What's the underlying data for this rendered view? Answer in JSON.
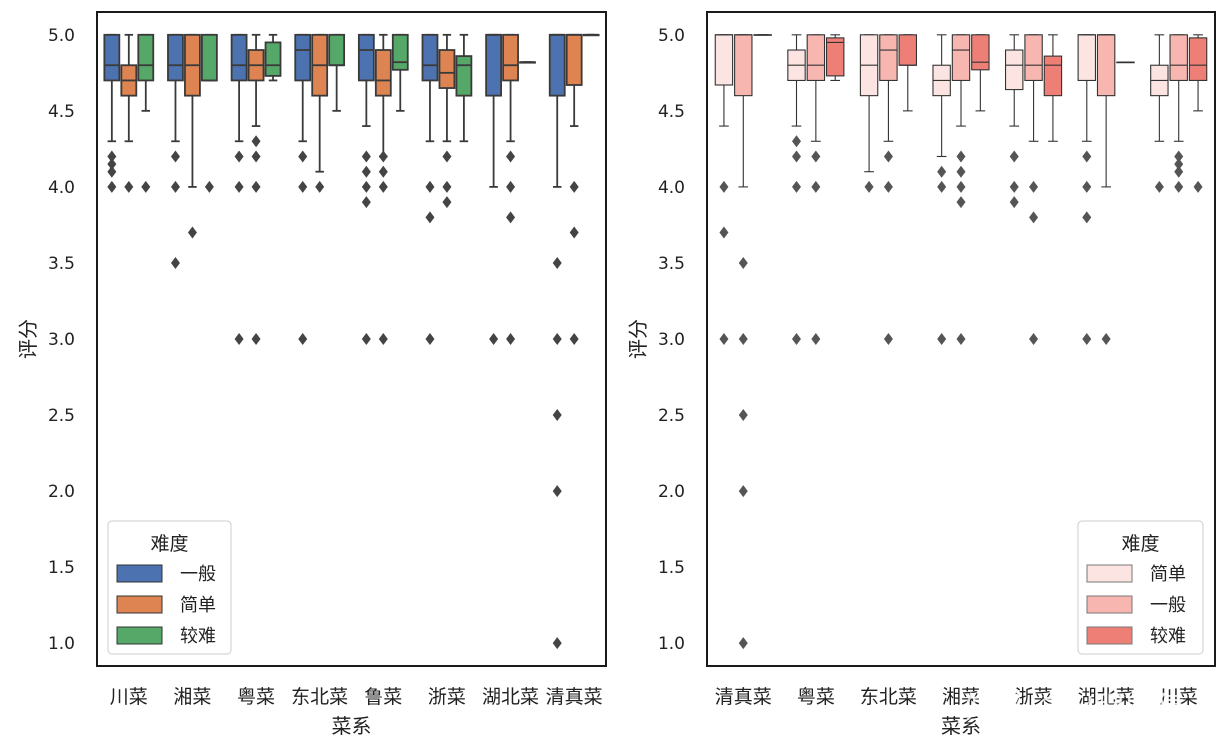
{
  "chart_data": [
    {
      "type": "boxplot",
      "xlabel": "菜系",
      "ylabel": "评分",
      "ylim": [
        0.85,
        5.15
      ],
      "yticks": [
        "1.0",
        "1.5",
        "2.0",
        "2.5",
        "3.0",
        "3.5",
        "4.0",
        "4.5",
        "5.0"
      ],
      "categories": [
        "川菜",
        "湘菜",
        "粤菜",
        "东北菜",
        "鲁菜",
        "浙菜",
        "湖北菜",
        "清真菜"
      ],
      "legend": {
        "title": "难度",
        "position": "lower-left"
      },
      "series": [
        {
          "name": "一般",
          "color": "#4c72b0",
          "boxes": [
            {
              "q1": 4.7,
              "med": 4.8,
              "q3": 5.0,
              "lo": 4.3,
              "hi": 5.0,
              "out": [
                4.2,
                4.15,
                4.1,
                4.0
              ]
            },
            {
              "q1": 4.7,
              "med": 4.8,
              "q3": 5.0,
              "lo": 4.3,
              "hi": 5.0,
              "out": [
                4.2,
                4.0,
                3.5
              ]
            },
            {
              "q1": 4.7,
              "med": 4.8,
              "q3": 5.0,
              "lo": 4.3,
              "hi": 5.0,
              "out": [
                4.2,
                4.0,
                3.0
              ]
            },
            {
              "q1": 4.7,
              "med": 4.9,
              "q3": 5.0,
              "lo": 4.3,
              "hi": 5.0,
              "out": [
                4.2,
                4.0,
                3.0
              ]
            },
            {
              "q1": 4.7,
              "med": 4.9,
              "q3": 5.0,
              "lo": 4.4,
              "hi": 5.0,
              "out": [
                4.2,
                4.1,
                4.0,
                3.9,
                3.0
              ]
            },
            {
              "q1": 4.7,
              "med": 4.8,
              "q3": 5.0,
              "lo": 4.3,
              "hi": 5.0,
              "out": [
                4.0,
                3.8,
                3.0
              ]
            },
            {
              "q1": 4.6,
              "med": 5.0,
              "q3": 5.0,
              "lo": 4.0,
              "hi": 5.0,
              "out": [
                3.0
              ]
            },
            {
              "q1": 4.6,
              "med": 5.0,
              "q3": 5.0,
              "lo": 4.0,
              "hi": 5.0,
              "out": [
                3.5,
                3.0,
                2.5,
                2.0,
                1.0
              ]
            }
          ]
        },
        {
          "name": "简单",
          "color": "#dd8452",
          "boxes": [
            {
              "q1": 4.6,
              "med": 4.7,
              "q3": 4.8,
              "lo": 4.3,
              "hi": 5.0,
              "out": [
                4.0
              ]
            },
            {
              "q1": 4.6,
              "med": 4.8,
              "q3": 5.0,
              "lo": 4.0,
              "hi": 5.0,
              "out": [
                3.7
              ]
            },
            {
              "q1": 4.7,
              "med": 4.8,
              "q3": 4.9,
              "lo": 4.4,
              "hi": 5.0,
              "out": [
                4.3,
                4.2,
                4.0,
                3.0
              ]
            },
            {
              "q1": 4.6,
              "med": 4.8,
              "q3": 5.0,
              "lo": 4.1,
              "hi": 5.0,
              "out": [
                4.0
              ]
            },
            {
              "q1": 4.6,
              "med": 4.7,
              "q3": 4.9,
              "lo": 4.2,
              "hi": 5.0,
              "out": [
                4.2,
                4.1,
                4.0,
                3.0
              ]
            },
            {
              "q1": 4.65,
              "med": 4.75,
              "q3": 4.9,
              "lo": 4.3,
              "hi": 5.0,
              "out": [
                4.2,
                4.0,
                3.9
              ]
            },
            {
              "q1": 4.7,
              "med": 4.8,
              "q3": 5.0,
              "lo": 4.3,
              "hi": 5.0,
              "out": [
                4.2,
                4.0,
                3.8,
                3.0
              ]
            },
            {
              "q1": 4.67,
              "med": 5.0,
              "q3": 5.0,
              "lo": 4.4,
              "hi": 5.0,
              "out": [
                4.0,
                3.7,
                3.0
              ]
            }
          ]
        },
        {
          "name": "较难",
          "color": "#55a868",
          "boxes": [
            {
              "q1": 4.7,
              "med": 4.8,
              "q3": 5.0,
              "lo": 4.5,
              "hi": 5.0,
              "out": [
                4.0
              ]
            },
            {
              "q1": 4.7,
              "med": 4.7,
              "q3": 5.0,
              "lo": 4.7,
              "hi": 5.0,
              "out": [
                4.0
              ]
            },
            {
              "q1": 4.73,
              "med": 4.8,
              "q3": 4.95,
              "lo": 4.7,
              "hi": 5.0,
              "out": []
            },
            {
              "q1": 4.8,
              "med": 4.8,
              "q3": 5.0,
              "lo": 4.5,
              "hi": 5.0,
              "out": []
            },
            {
              "q1": 4.77,
              "med": 4.82,
              "q3": 5.0,
              "lo": 4.5,
              "hi": 5.0,
              "out": []
            },
            {
              "q1": 4.6,
              "med": 4.8,
              "q3": 4.86,
              "lo": 4.3,
              "hi": 5.0,
              "out": []
            },
            {
              "q1": 4.82,
              "med": 4.82,
              "q3": 4.82,
              "lo": 4.82,
              "hi": 4.82,
              "out": []
            },
            {
              "q1": 5.0,
              "med": 5.0,
              "q3": 5.0,
              "lo": 5.0,
              "hi": 5.0,
              "out": []
            }
          ]
        }
      ]
    },
    {
      "type": "boxplot",
      "xlabel": "菜系",
      "ylabel": "评分",
      "ylim": [
        0.85,
        5.15
      ],
      "yticks": [
        "1.0",
        "1.5",
        "2.0",
        "2.5",
        "3.0",
        "3.5",
        "4.0",
        "4.5",
        "5.0"
      ],
      "categories": [
        "清真菜",
        "粤菜",
        "东北菜",
        "湘菜",
        "浙菜",
        "湖北菜",
        "川菜"
      ],
      "legend": {
        "title": "难度",
        "position": "lower-right"
      },
      "series": [
        {
          "name": "简单",
          "color": "#fce4e3",
          "boxes": [
            {
              "q1": 4.67,
              "med": 5.0,
              "q3": 5.0,
              "lo": 4.4,
              "hi": 5.0,
              "out": [
                4.0,
                3.7,
                3.0
              ]
            },
            {
              "q1": 4.7,
              "med": 4.8,
              "q3": 4.9,
              "lo": 4.4,
              "hi": 5.0,
              "out": [
                4.3,
                4.2,
                4.0,
                3.0
              ]
            },
            {
              "q1": 4.6,
              "med": 4.8,
              "q3": 5.0,
              "lo": 4.1,
              "hi": 5.0,
              "out": [
                4.0
              ]
            },
            {
              "q1": 4.6,
              "med": 4.7,
              "q3": 4.8,
              "lo": 4.2,
              "hi": 5.0,
              "out": [
                4.1,
                4.0,
                3.0
              ]
            },
            {
              "q1": 4.64,
              "med": 4.8,
              "q3": 4.9,
              "lo": 4.4,
              "hi": 5.0,
              "out": [
                4.2,
                4.0,
                3.9
              ]
            },
            {
              "q1": 4.7,
              "med": 5.0,
              "q3": 5.0,
              "lo": 4.3,
              "hi": 5.0,
              "out": [
                4.2,
                4.0,
                3.8,
                3.0
              ]
            },
            {
              "q1": 4.6,
              "med": 4.7,
              "q3": 4.8,
              "lo": 4.3,
              "hi": 5.0,
              "out": [
                4.0
              ]
            }
          ]
        },
        {
          "name": "一般",
          "color": "#f8b6b1",
          "boxes": [
            {
              "q1": 4.6,
              "med": 5.0,
              "q3": 5.0,
              "lo": 4.0,
              "hi": 5.0,
              "out": [
                3.5,
                3.0,
                2.5,
                2.0,
                1.0
              ]
            },
            {
              "q1": 4.7,
              "med": 4.8,
              "q3": 5.0,
              "lo": 4.3,
              "hi": 5.0,
              "out": [
                4.2,
                4.0,
                3.0
              ]
            },
            {
              "q1": 4.7,
              "med": 4.9,
              "q3": 5.0,
              "lo": 4.3,
              "hi": 5.0,
              "out": [
                4.2,
                4.0,
                3.0
              ]
            },
            {
              "q1": 4.7,
              "med": 4.9,
              "q3": 5.0,
              "lo": 4.4,
              "hi": 5.0,
              "out": [
                4.2,
                4.1,
                4.0,
                3.9,
                3.0
              ]
            },
            {
              "q1": 4.7,
              "med": 4.8,
              "q3": 5.0,
              "lo": 4.3,
              "hi": 5.0,
              "out": [
                4.0,
                3.8,
                3.0
              ]
            },
            {
              "q1": 4.6,
              "med": 5.0,
              "q3": 5.0,
              "lo": 4.0,
              "hi": 5.0,
              "out": [
                3.0
              ]
            },
            {
              "q1": 4.7,
              "med": 4.8,
              "q3": 5.0,
              "lo": 4.3,
              "hi": 5.0,
              "out": [
                4.2,
                4.15,
                4.1,
                4.0
              ]
            }
          ]
        },
        {
          "name": "较难",
          "color": "#ee7f76",
          "boxes": [
            {
              "q1": 5.0,
              "med": 5.0,
              "q3": 5.0,
              "lo": 5.0,
              "hi": 5.0,
              "out": []
            },
            {
              "q1": 4.73,
              "med": 4.95,
              "q3": 4.98,
              "lo": 4.7,
              "hi": 5.0,
              "out": []
            },
            {
              "q1": 4.8,
              "med": 4.8,
              "q3": 5.0,
              "lo": 4.5,
              "hi": 5.0,
              "out": []
            },
            {
              "q1": 4.77,
              "med": 4.82,
              "q3": 5.0,
              "lo": 4.5,
              "hi": 5.0,
              "out": []
            },
            {
              "q1": 4.6,
              "med": 4.8,
              "q3": 4.86,
              "lo": 4.3,
              "hi": 5.0,
              "out": []
            },
            {
              "q1": 4.82,
              "med": 4.82,
              "q3": 4.82,
              "lo": 4.82,
              "hi": 4.82,
              "out": []
            },
            {
              "q1": 4.7,
              "med": 4.8,
              "q3": 4.98,
              "lo": 4.5,
              "hi": 5.0,
              "out": [
                4.0
              ]
            }
          ]
        }
      ]
    }
  ],
  "watermark": "知乎 @AI程序猿"
}
